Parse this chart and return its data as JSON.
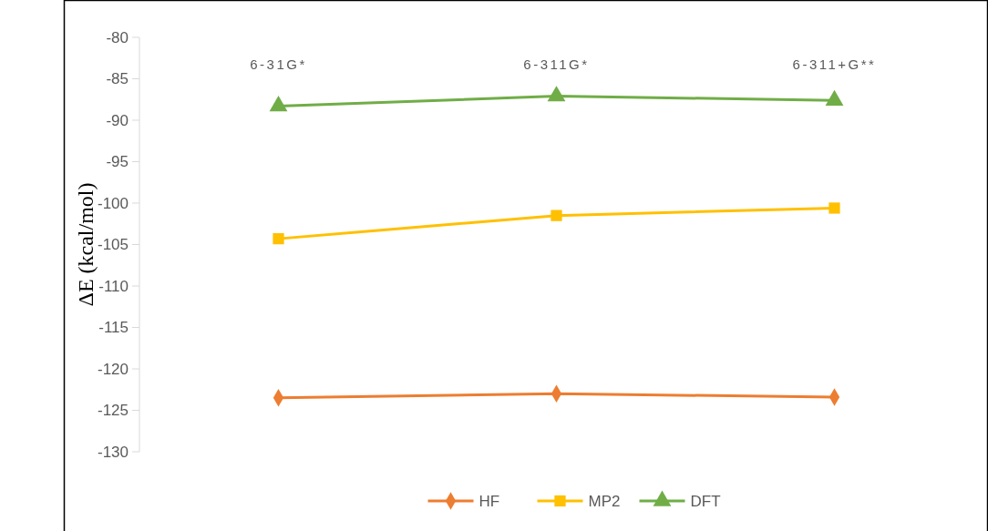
{
  "chart_data": {
    "type": "line",
    "ylabel": "ΔE (kcal/mol)",
    "categories": [
      "6-31G*",
      "6-311G*",
      "6-311+G**"
    ],
    "series": [
      {
        "name": "HF",
        "color": "#ed7d31",
        "marker": "diamond",
        "values": [
          -123.5,
          -123.0,
          -123.4
        ]
      },
      {
        "name": "MP2",
        "color": "#ffc000",
        "marker": "square",
        "values": [
          -104.3,
          -101.5,
          -100.6
        ]
      },
      {
        "name": "DFT",
        "color": "#70ad47",
        "marker": "triangle",
        "values": [
          -88.3,
          -87.1,
          -87.6
        ]
      }
    ],
    "ylim": [
      -130,
      -80
    ],
    "yticks": [
      -130,
      -125,
      -120,
      -115,
      -110,
      -105,
      -100,
      -95,
      -90,
      -85,
      -80
    ],
    "grid": false,
    "legend": "bottom",
    "line_style": "solid"
  }
}
